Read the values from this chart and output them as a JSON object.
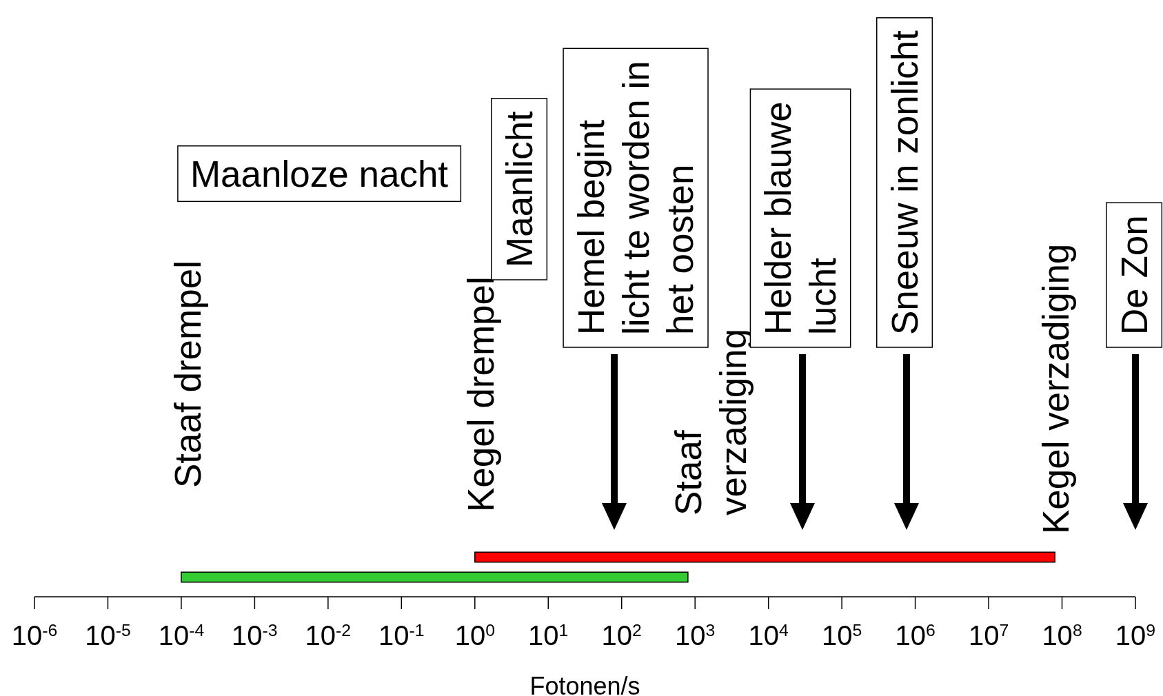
{
  "chart_data": {
    "type": "bar",
    "orientation": "horizontal",
    "categories": [
      null,
      null
    ],
    "base": [
      1,
      0.0001
    ],
    "values": [
      79999999,
      799.9999
    ],
    "colors": [
      "#ff0000",
      "#33cc33"
    ],
    "xlabel": "Fotonen/s",
    "log": "x",
    "xlim": [
      1e-06,
      1000000000
    ],
    "xticks": [
      {
        "value": 1e-06,
        "label": "10$^{-6}$"
      },
      {
        "value": 1e-05,
        "label": "10$^{-5}$"
      },
      {
        "value": 0.0001,
        "label": "10$^{-4}$"
      },
      {
        "value": 0.001,
        "label": "10$^{-3}$"
      },
      {
        "value": 0.01,
        "label": "10$^{-2}$"
      },
      {
        "value": 0.1,
        "label": "10$^{-1}$"
      },
      {
        "value": 1,
        "label": "10$^{0}$"
      },
      {
        "value": 10,
        "label": "10$^{1}$"
      },
      {
        "value": 100,
        "label": "10$^{2}$"
      },
      {
        "value": 1000,
        "label": "10$^{3}$"
      },
      {
        "value": 10000,
        "label": "10$^{4}$"
      },
      {
        "value": 100000,
        "label": "10$^{5}$"
      },
      {
        "value": 1000000,
        "label": "10$^{6}$"
      },
      {
        "value": 10000000,
        "label": "10$^{7}$"
      },
      {
        "value": 100000000,
        "label": "10$^{8}$"
      },
      {
        "value": 1000000000,
        "label": "10$^{9}$"
      }
    ],
    "annotations": [
      "Staaf drempel",
      "Kegel drempel",
      "Staaf\nverzadiging",
      "Kegel verzadiging",
      "Maanloze nacht",
      "Maanlicht",
      "Hemel begint\nlicht te worden in\nhet oosten",
      "Helder blauwe\nlucht",
      "Sneeuw in zonlicht",
      "De Zon"
    ]
  }
}
